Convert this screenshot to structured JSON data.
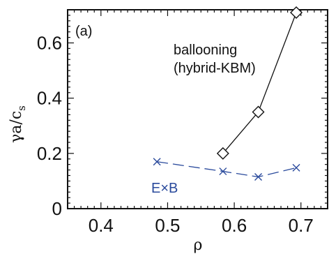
{
  "chart_data": {
    "type": "line",
    "panel_label": "(a)",
    "xlabel": "ρ",
    "ylabel": {
      "main": "γa/c",
      "subscript": "s"
    },
    "xlim": [
      0.35,
      0.74
    ],
    "ylim": [
      0,
      0.72
    ],
    "x_ticks": [
      {
        "value": 0.4,
        "label": "0.4"
      },
      {
        "value": 0.5,
        "label": "0.5"
      },
      {
        "value": 0.6,
        "label": "0.6"
      },
      {
        "value": 0.7,
        "label": "0.7"
      }
    ],
    "y_ticks": [
      {
        "value": 0,
        "label": "0"
      },
      {
        "value": 0.2,
        "label": "0.2"
      },
      {
        "value": 0.4,
        "label": "0.4"
      },
      {
        "value": 0.6,
        "label": "0.6"
      }
    ],
    "grid": false,
    "series": [
      {
        "name": "",
        "marker": "diamond",
        "line": "solid",
        "color": "#111111",
        "x": [
          0.583,
          0.636,
          0.693
        ],
        "y": [
          0.2,
          0.35,
          0.71
        ]
      },
      {
        "name": "",
        "marker": "x",
        "line": "dashed",
        "color": "#2a4a9c",
        "x": [
          0.484,
          0.583,
          0.636,
          0.693
        ],
        "y": [
          0.17,
          0.135,
          0.115,
          0.148
        ]
      }
    ],
    "annotations": [
      {
        "id": "ballooning",
        "lines": [
          "ballooning",
          "(hybrid-KBM)"
        ],
        "color": "#111111"
      },
      {
        "id": "exb",
        "lines": [
          "E×B"
        ],
        "color": "#2a4a9c"
      }
    ]
  }
}
